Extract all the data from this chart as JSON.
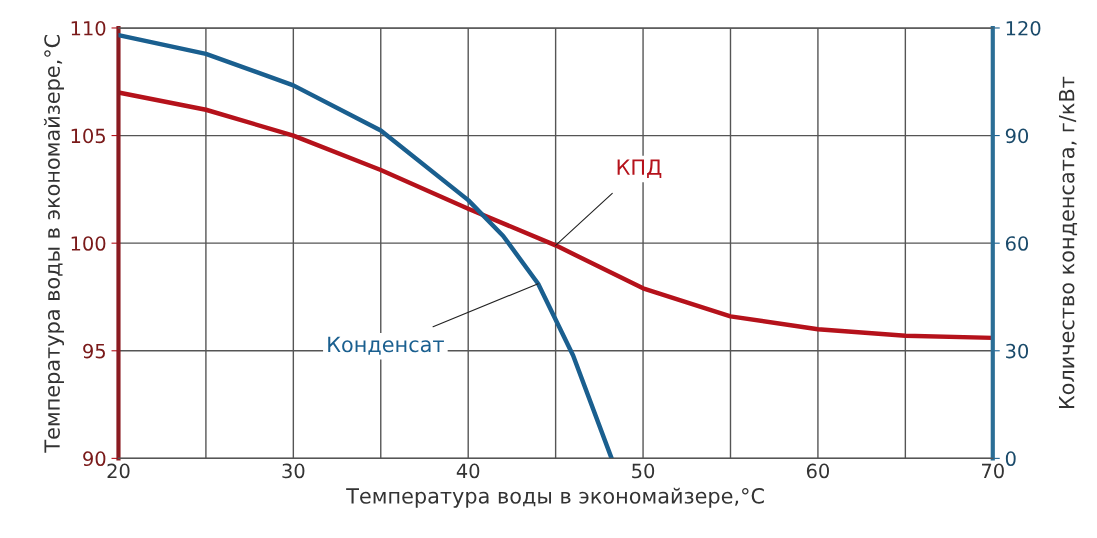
{
  "chart_data": {
    "type": "line",
    "xlabel": "Температура воды в экономайзере,°С",
    "ylabel": "Температура воды в экономайзере,°С",
    "y2label": "Количество конденсата, г/кВт",
    "x": [
      20,
      25,
      30,
      35,
      40,
      45,
      50,
      55,
      60,
      65,
      70
    ],
    "series": [
      {
        "name": "КПД",
        "color": "#b5121b",
        "values": [
          107.0,
          106.2,
          105.0,
          103.4,
          101.6,
          99.9,
          97.9,
          96.6,
          96.0,
          95.7,
          95.6
        ]
      },
      {
        "name": "Конденсат",
        "color": "#1a5f8f",
        "axis": "y2",
        "x": [
          20,
          25,
          30,
          35,
          40,
          42,
          44,
          46,
          48.2
        ],
        "values": [
          118,
          112.8,
          104,
          91.4,
          72,
          62,
          48.7,
          28.7,
          0
        ]
      }
    ],
    "xlim": [
      20,
      70
    ],
    "xticks": [
      20,
      {
        "value": 25,
        "label": null
      },
      30,
      {
        "value": 35,
        "label": null
      },
      40,
      {
        "value": 45,
        "label": null
      },
      50,
      {
        "value": 55,
        "label": null
      },
      60,
      {
        "value": 65,
        "label": null
      },
      70
    ],
    "ylim": [
      90,
      110
    ],
    "yticks": [
      90,
      95,
      100,
      105,
      110
    ],
    "y2lim": [
      0,
      120
    ],
    "y2ticks": [
      0,
      30,
      60,
      90,
      120
    ],
    "grid": true,
    "line_style": "solid",
    "marker": "none"
  }
}
